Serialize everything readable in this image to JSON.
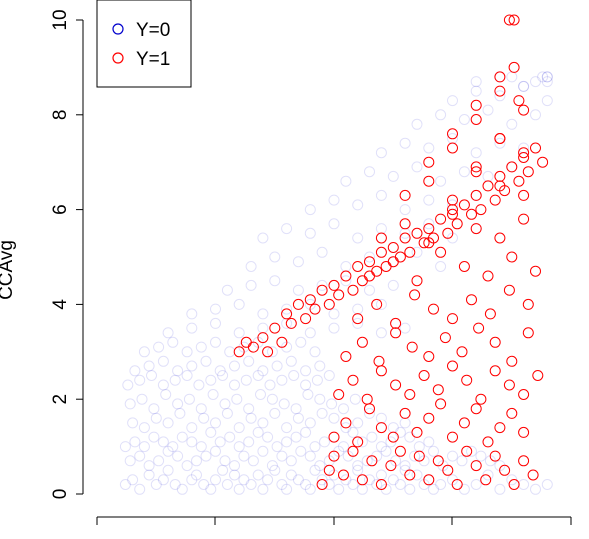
{
  "chart_data": {
    "type": "scatter",
    "title": "",
    "xlabel": "",
    "ylabel": "CCAvg",
    "xlim": [
      0,
      200
    ],
    "ylim": [
      0,
      10
    ],
    "y_ticks": [
      "0",
      "2",
      "4",
      "6",
      "8",
      "10"
    ],
    "x_ticks": [
      "",
      "",
      "",
      "",
      ""
    ],
    "legend": {
      "placement": "top-left",
      "entries": [
        {
          "label": "Y=0",
          "color": "#0000cd"
        },
        {
          "label": "Y=1",
          "color": "#ff0000"
        }
      ]
    },
    "series": [
      {
        "name": "Y=0",
        "color": "#0000cd",
        "opacity": 0.12,
        "x": [
          12,
          15,
          18,
          22,
          25,
          28,
          30,
          33,
          36,
          40,
          42,
          45,
          48,
          50,
          53,
          55,
          58,
          60,
          62,
          65,
          68,
          70,
          72,
          75,
          78,
          80,
          82,
          85,
          88,
          90,
          92,
          95,
          98,
          100,
          102,
          105,
          108,
          110,
          112,
          115,
          118,
          120,
          122,
          125,
          128,
          130,
          132,
          135,
          138,
          140,
          142,
          145,
          150,
          155,
          160,
          165,
          170,
          175,
          180,
          185,
          190,
          14,
          18,
          22,
          26,
          30,
          34,
          38,
          42,
          46,
          50,
          54,
          58,
          62,
          66,
          70,
          74,
          78,
          82,
          86,
          90,
          94,
          98,
          102,
          106,
          110,
          114,
          118,
          122,
          126,
          130,
          134,
          138,
          142,
          146,
          150,
          154,
          158,
          162,
          166,
          170,
          12,
          16,
          20,
          24,
          28,
          32,
          36,
          40,
          44,
          48,
          52,
          56,
          60,
          64,
          68,
          72,
          76,
          80,
          84,
          88,
          92,
          96,
          100,
          104,
          108,
          112,
          116,
          120,
          124,
          128,
          132,
          136,
          140,
          15,
          20,
          25,
          30,
          35,
          40,
          45,
          50,
          55,
          60,
          65,
          70,
          75,
          80,
          85,
          90,
          95,
          100,
          105,
          110,
          115,
          120,
          125,
          130,
          14,
          19,
          24,
          29,
          34,
          39,
          44,
          49,
          54,
          59,
          64,
          69,
          74,
          79,
          84,
          89,
          94,
          99,
          104,
          109,
          13,
          18,
          23,
          28,
          33,
          38,
          43,
          48,
          53,
          58,
          63,
          68,
          73,
          78,
          83,
          88,
          93,
          98,
          16,
          22,
          28,
          34,
          40,
          46,
          52,
          58,
          64,
          70,
          76,
          82,
          88,
          94,
          20,
          26,
          32,
          38,
          44,
          50,
          56,
          62,
          68,
          74,
          80,
          86,
          92,
          30,
          40,
          50,
          60,
          70,
          80,
          90,
          100,
          110,
          120,
          130,
          40,
          50,
          60,
          70,
          80,
          90,
          100,
          110,
          120,
          55,
          65,
          75,
          85,
          95,
          105,
          115,
          125,
          65,
          75,
          85,
          95,
          105,
          115,
          125,
          135,
          145,
          70,
          80,
          90,
          100,
          110,
          120,
          130,
          140,
          150,
          160,
          90,
          100,
          110,
          120,
          130,
          140,
          150,
          160,
          105,
          115,
          125,
          135,
          145,
          155,
          165,
          175,
          120,
          130,
          140,
          150,
          160,
          170,
          180,
          135,
          145,
          155,
          165,
          175,
          185,
          150,
          160,
          170,
          180,
          190,
          160,
          170,
          180,
          190,
          175,
          185,
          190,
          188,
          190
        ],
        "y": [
          0.2,
          0.3,
          0.1,
          0.4,
          0.2,
          0.3,
          0.5,
          0.2,
          0.1,
          0.3,
          0.4,
          0.2,
          0.1,
          0.3,
          0.5,
          0.2,
          0.4,
          0.1,
          0.3,
          0.2,
          0.4,
          0.1,
          0.3,
          0.5,
          0.2,
          0.1,
          0.4,
          0.3,
          0.2,
          0.1,
          0.5,
          0.3,
          0.2,
          0.4,
          0.1,
          0.3,
          0.2,
          0.5,
          0.1,
          0.3,
          0.2,
          0.4,
          0.1,
          0.3,
          0.2,
          0.5,
          0.1,
          0.4,
          0.2,
          0.3,
          0.1,
          0.2,
          0.3,
          0.1,
          0.2,
          0.4,
          0.1,
          0.3,
          0.2,
          0.1,
          0.2,
          0.7,
          0.8,
          0.6,
          0.7,
          0.9,
          0.8,
          0.6,
          0.7,
          0.8,
          0.9,
          0.7,
          0.6,
          0.8,
          0.7,
          0.9,
          0.6,
          0.8,
          0.7,
          0.9,
          0.8,
          0.6,
          0.7,
          0.9,
          0.8,
          0.6,
          0.7,
          0.8,
          0.9,
          0.7,
          0.6,
          0.8,
          0.7,
          0.9,
          0.6,
          0.8,
          0.7,
          0.9,
          0.8,
          0.7,
          0.6,
          1.0,
          1.1,
          1.0,
          1.2,
          1.1,
          1.0,
          1.2,
          1.1,
          1.0,
          1.3,
          1.1,
          1.2,
          1.0,
          1.1,
          1.3,
          1.2,
          1.0,
          1.1,
          1.2,
          1.3,
          1.0,
          1.1,
          1.2,
          1.0,
          1.3,
          1.1,
          1.2,
          1.0,
          1.1,
          1.3,
          1.2,
          1.0,
          1.1,
          1.5,
          1.4,
          1.6,
          1.5,
          1.7,
          1.4,
          1.6,
          1.5,
          1.7,
          1.4,
          1.6,
          1.5,
          1.7,
          1.4,
          1.6,
          1.5,
          1.7,
          1.6,
          1.4,
          1.5,
          1.7,
          1.6,
          1.4,
          1.5,
          1.9,
          2.0,
          1.8,
          2.1,
          1.9,
          2.0,
          1.8,
          2.1,
          1.9,
          2.0,
          1.8,
          2.1,
          2.0,
          1.9,
          1.8,
          2.1,
          2.0,
          1.9,
          1.8,
          2.0,
          2.3,
          2.4,
          2.5,
          2.3,
          2.4,
          2.5,
          2.3,
          2.4,
          2.5,
          2.3,
          2.4,
          2.5,
          2.3,
          2.4,
          2.5,
          2.3,
          2.4,
          2.5,
          2.6,
          2.7,
          2.8,
          2.6,
          2.7,
          2.8,
          2.6,
          2.7,
          2.8,
          2.6,
          2.7,
          2.8,
          2.6,
          2.7,
          3.0,
          3.1,
          3.2,
          3.0,
          3.1,
          3.2,
          3.0,
          3.1,
          3.2,
          3.0,
          3.1,
          3.2,
          3.0,
          3.4,
          3.5,
          3.6,
          3.4,
          3.5,
          3.6,
          3.4,
          3.5,
          3.6,
          3.4,
          3.5,
          3.8,
          3.9,
          4.0,
          3.8,
          3.9,
          4.0,
          3.8,
          3.9,
          4.0,
          4.3,
          4.4,
          4.5,
          4.3,
          4.4,
          4.5,
          4.3,
          4.4,
          4.8,
          5.0,
          4.9,
          5.1,
          4.8,
          5.0,
          4.9,
          5.1,
          4.8,
          5.4,
          5.6,
          5.5,
          5.7,
          5.4,
          5.6,
          5.5,
          5.7,
          5.4,
          5.6,
          6.0,
          6.2,
          6.1,
          6.3,
          6.0,
          6.2,
          6.1,
          6.3,
          6.6,
          6.8,
          6.7,
          6.9,
          6.6,
          6.8,
          6.7,
          6.9,
          7.2,
          7.4,
          7.3,
          7.5,
          7.2,
          7.4,
          7.3,
          7.8,
          8.0,
          7.9,
          8.1,
          7.8,
          8.0,
          8.3,
          8.5,
          8.4,
          8.6,
          8.3,
          8.7,
          8.8,
          8.6,
          8.8,
          8.8,
          8.7,
          8.8,
          8.8,
          8.7
        ]
      },
      {
        "name": "Y=1",
        "color": "#ff0000",
        "opacity": 1,
        "x": [
          60,
          63,
          66,
          70,
          72,
          75,
          78,
          80,
          82,
          85,
          88,
          90,
          92,
          95,
          98,
          100,
          102,
          105,
          108,
          110,
          112,
          115,
          118,
          120,
          122,
          125,
          128,
          130,
          132,
          135,
          138,
          140,
          142,
          145,
          148,
          150,
          152,
          155,
          158,
          160,
          162,
          165,
          168,
          170,
          172,
          175,
          178,
          180,
          182,
          185,
          188,
          95,
          98,
          100,
          104,
          108,
          112,
          116,
          120,
          124,
          128,
          132,
          136,
          140,
          144,
          148,
          152,
          156,
          160,
          164,
          168,
          172,
          176,
          180,
          184,
          100,
          105,
          110,
          115,
          120,
          125,
          130,
          135,
          140,
          145,
          150,
          155,
          160,
          165,
          170,
          175,
          180,
          102,
          108,
          114,
          120,
          126,
          132,
          138,
          144,
          150,
          156,
          162,
          168,
          174,
          180,
          186,
          105,
          112,
          119,
          126,
          133,
          140,
          147,
          154,
          161,
          168,
          175,
          182,
          110,
          118,
          126,
          134,
          142,
          150,
          158,
          166,
          174,
          182,
          115,
          125,
          135,
          145,
          155,
          165,
          175,
          185,
          120,
          130,
          140,
          150,
          160,
          170,
          180,
          130,
          140,
          150,
          160,
          170,
          180,
          140,
          150,
          160,
          170,
          180,
          150,
          160,
          170,
          180,
          160,
          170,
          178,
          170,
          176,
          174,
          176
        ],
        "y": [
          3.0,
          3.2,
          3.1,
          3.3,
          3.0,
          3.5,
          3.2,
          3.8,
          3.6,
          4.0,
          3.7,
          4.1,
          3.9,
          4.3,
          4.0,
          4.4,
          4.2,
          4.6,
          4.3,
          4.8,
          4.5,
          4.9,
          4.7,
          5.1,
          4.8,
          5.2,
          5.0,
          5.4,
          5.1,
          5.5,
          5.3,
          5.6,
          5.4,
          5.8,
          5.5,
          6.0,
          5.7,
          6.1,
          5.9,
          6.3,
          6.0,
          6.5,
          6.2,
          6.7,
          6.4,
          6.9,
          6.6,
          7.1,
          6.8,
          7.3,
          7.0,
          0.2,
          0.5,
          0.8,
          0.4,
          0.9,
          0.3,
          0.7,
          0.2,
          0.6,
          0.9,
          0.4,
          0.8,
          0.3,
          0.7,
          0.5,
          0.2,
          0.9,
          0.6,
          0.3,
          0.8,
          0.5,
          0.2,
          0.7,
          0.4,
          1.2,
          1.5,
          1.1,
          1.8,
          1.4,
          1.2,
          1.7,
          1.3,
          1.6,
          1.9,
          1.2,
          1.5,
          1.8,
          1.1,
          1.4,
          1.7,
          1.3,
          2.1,
          2.4,
          2.0,
          2.6,
          2.3,
          2.1,
          2.5,
          2.2,
          2.7,
          2.4,
          2.0,
          2.6,
          2.3,
          2.1,
          2.5,
          2.9,
          3.2,
          2.8,
          3.4,
          3.1,
          2.9,
          3.3,
          3.0,
          3.5,
          3.2,
          2.8,
          3.4,
          3.7,
          4.0,
          3.6,
          4.2,
          3.9,
          3.7,
          4.1,
          3.8,
          4.3,
          4.0,
          4.6,
          4.9,
          4.5,
          5.1,
          4.8,
          4.6,
          5.0,
          4.7,
          5.4,
          5.7,
          5.3,
          5.9,
          5.6,
          5.4,
          5.8,
          6.3,
          6.6,
          6.2,
          6.8,
          6.5,
          6.3,
          7.0,
          7.3,
          6.9,
          7.5,
          7.2,
          7.6,
          7.9,
          7.5,
          8.1,
          8.2,
          8.5,
          8.3,
          8.8,
          9.0,
          10.0,
          10.0
        ]
      }
    ]
  }
}
